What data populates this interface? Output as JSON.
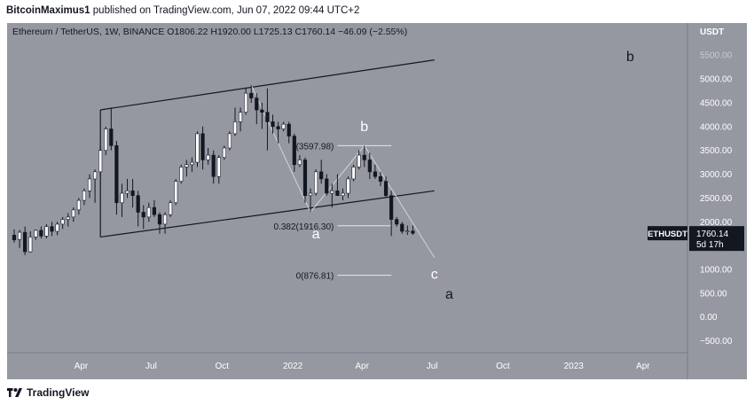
{
  "header": {
    "author": "BitcoinMaximus1",
    "published_text": "published on TradingView.com, Jun 07, 2022 09:44 UTC+2"
  },
  "colors": {
    "background": "#9598a1",
    "up_candle": "#ffffff",
    "down_candle": "#131722",
    "channel_line": "#131722",
    "wave_line": "#d1d4dc",
    "fib_line": "#e8e8e8",
    "price_tag": "#131722"
  },
  "chart_data": {
    "type": "candlestick",
    "symbol_line": {
      "name": "Ethereum / TetherUS, 1W, BINANCE",
      "open_label": "O",
      "open": "1806.22",
      "high_label": "H",
      "high": "1920.00",
      "low_label": "L",
      "low": "1725.13",
      "close_label": "C",
      "close": "1760.14",
      "change": "−46.09 (−2.55%)"
    },
    "y_axis": {
      "unit": "USDT",
      "range": [
        -750,
        6100
      ],
      "ticks": [
        "5500.00",
        "5000.00",
        "4500.00",
        "4000.00",
        "3500.00",
        "3000.00",
        "2500.00",
        "2000.00",
        "1500.00",
        "1000.00",
        "500.00",
        "0.00",
        "−500.00"
      ],
      "tick_values": [
        5500,
        5000,
        4500,
        4000,
        3500,
        3000,
        2500,
        2000,
        1500,
        1000,
        500,
        0,
        -500
      ]
    },
    "x_axis": {
      "start": "2021-01-04",
      "end": "2023-05-15",
      "ticks": [
        {
          "label": "Apr",
          "date": "2021-04-01"
        },
        {
          "label": "Jul",
          "date": "2021-07-01"
        },
        {
          "label": "Oct",
          "date": "2021-10-01"
        },
        {
          "label": "2022",
          "date": "2022-01-01"
        },
        {
          "label": "Apr",
          "date": "2022-04-01"
        },
        {
          "label": "Jul",
          "date": "2022-07-01"
        },
        {
          "label": "Oct",
          "date": "2022-10-01"
        },
        {
          "label": "2023",
          "date": "2023-01-01"
        },
        {
          "label": "Apr",
          "date": "2023-04-01"
        }
      ]
    },
    "last_price": {
      "symbol": "ETHUSDT",
      "price": "1760.14",
      "value": 1760.14,
      "countdown": "5d 17h"
    },
    "candles": [
      {
        "date": "2021-01-04",
        "o": 1720,
        "h": 1840,
        "l": 1560,
        "c": 1620
      },
      {
        "date": "2021-01-11",
        "o": 1630,
        "h": 1830,
        "l": 1450,
        "c": 1780
      },
      {
        "date": "2021-01-18",
        "o": 1780,
        "h": 1900,
        "l": 1300,
        "c": 1370
      },
      {
        "date": "2021-01-25",
        "o": 1370,
        "h": 1800,
        "l": 1350,
        "c": 1680
      },
      {
        "date": "2021-02-01",
        "o": 1680,
        "h": 1840,
        "l": 1620,
        "c": 1820
      },
      {
        "date": "2021-02-08",
        "o": 1820,
        "h": 1900,
        "l": 1650,
        "c": 1700
      },
      {
        "date": "2021-02-15",
        "o": 1700,
        "h": 1950,
        "l": 1650,
        "c": 1900
      },
      {
        "date": "2021-02-22",
        "o": 1900,
        "h": 2000,
        "l": 1700,
        "c": 1800
      },
      {
        "date": "2021-03-01",
        "o": 1800,
        "h": 2000,
        "l": 1720,
        "c": 1950
      },
      {
        "date": "2021-03-08",
        "o": 1950,
        "h": 2100,
        "l": 1850,
        "c": 2050
      },
      {
        "date": "2021-03-15",
        "o": 2050,
        "h": 2180,
        "l": 1900,
        "c": 2100
      },
      {
        "date": "2021-03-22",
        "o": 2100,
        "h": 2300,
        "l": 2000,
        "c": 2250
      },
      {
        "date": "2021-03-29",
        "o": 2250,
        "h": 2500,
        "l": 2150,
        "c": 2450
      },
      {
        "date": "2021-04-05",
        "o": 2450,
        "h": 2700,
        "l": 2350,
        "c": 2650
      },
      {
        "date": "2021-04-12",
        "o": 2650,
        "h": 3000,
        "l": 2500,
        "c": 2900
      },
      {
        "date": "2021-04-19",
        "o": 2900,
        "h": 3100,
        "l": 2400,
        "c": 3050
      },
      {
        "date": "2021-04-26",
        "o": 3050,
        "h": 3600,
        "l": 2950,
        "c": 3500
      },
      {
        "date": "2021-05-03",
        "o": 3500,
        "h": 4000,
        "l": 3400,
        "c": 3950
      },
      {
        "date": "2021-05-10",
        "o": 3950,
        "h": 4400,
        "l": 3500,
        "c": 3600
      },
      {
        "date": "2021-05-17",
        "o": 3600,
        "h": 3700,
        "l": 2150,
        "c": 2400
      },
      {
        "date": "2021-05-24",
        "o": 2400,
        "h": 2800,
        "l": 2100,
        "c": 2600
      },
      {
        "date": "2021-05-31",
        "o": 2600,
        "h": 2900,
        "l": 2500,
        "c": 2650
      },
      {
        "date": "2021-06-07",
        "o": 2650,
        "h": 2900,
        "l": 2300,
        "c": 2550
      },
      {
        "date": "2021-06-14",
        "o": 2550,
        "h": 2650,
        "l": 1900,
        "c": 2200
      },
      {
        "date": "2021-06-21",
        "o": 2200,
        "h": 2350,
        "l": 1850,
        "c": 2100
      },
      {
        "date": "2021-06-28",
        "o": 2100,
        "h": 2400,
        "l": 2000,
        "c": 2300
      },
      {
        "date": "2021-07-05",
        "o": 2300,
        "h": 2450,
        "l": 2100,
        "c": 2150
      },
      {
        "date": "2021-07-12",
        "o": 2150,
        "h": 2200,
        "l": 1750,
        "c": 1950
      },
      {
        "date": "2021-07-19",
        "o": 1950,
        "h": 2200,
        "l": 1750,
        "c": 2150
      },
      {
        "date": "2021-07-26",
        "o": 2150,
        "h": 2450,
        "l": 2100,
        "c": 2400
      },
      {
        "date": "2021-08-02",
        "o": 2400,
        "h": 2900,
        "l": 2350,
        "c": 2850
      },
      {
        "date": "2021-08-09",
        "o": 2850,
        "h": 3200,
        "l": 2800,
        "c": 3150
      },
      {
        "date": "2021-08-16",
        "o": 3150,
        "h": 3300,
        "l": 2950,
        "c": 3200
      },
      {
        "date": "2021-08-23",
        "o": 3200,
        "h": 3350,
        "l": 3050,
        "c": 3250
      },
      {
        "date": "2021-08-30",
        "o": 3250,
        "h": 3900,
        "l": 3150,
        "c": 3850
      },
      {
        "date": "2021-09-06",
        "o": 3850,
        "h": 4000,
        "l": 3100,
        "c": 3300
      },
      {
        "date": "2021-09-13",
        "o": 3300,
        "h": 3550,
        "l": 3200,
        "c": 3400
      },
      {
        "date": "2021-09-20",
        "o": 3400,
        "h": 3500,
        "l": 2800,
        "c": 2950
      },
      {
        "date": "2021-09-27",
        "o": 2950,
        "h": 3400,
        "l": 2800,
        "c": 3350
      },
      {
        "date": "2021-10-04",
        "o": 3350,
        "h": 3600,
        "l": 3300,
        "c": 3550
      },
      {
        "date": "2021-10-11",
        "o": 3550,
        "h": 3900,
        "l": 3500,
        "c": 3850
      },
      {
        "date": "2021-10-18",
        "o": 3850,
        "h": 4400,
        "l": 3800,
        "c": 4100
      },
      {
        "date": "2021-10-25",
        "o": 4100,
        "h": 4400,
        "l": 3900,
        "c": 4300
      },
      {
        "date": "2021-11-01",
        "o": 4300,
        "h": 4800,
        "l": 4250,
        "c": 4700
      },
      {
        "date": "2021-11-08",
        "o": 4700,
        "h": 4870,
        "l": 4500,
        "c": 4600
      },
      {
        "date": "2021-11-15",
        "o": 4600,
        "h": 4700,
        "l": 4050,
        "c": 4350
      },
      {
        "date": "2021-11-22",
        "o": 4350,
        "h": 4500,
        "l": 3950,
        "c": 4300
      },
      {
        "date": "2021-11-29",
        "o": 4300,
        "h": 4800,
        "l": 3500,
        "c": 4100
      },
      {
        "date": "2021-12-06",
        "o": 4100,
        "h": 4250,
        "l": 3850,
        "c": 4000
      },
      {
        "date": "2021-12-13",
        "o": 4000,
        "h": 4100,
        "l": 3650,
        "c": 3950
      },
      {
        "date": "2021-12-20",
        "o": 3950,
        "h": 4100,
        "l": 3900,
        "c": 4050
      },
      {
        "date": "2021-12-27",
        "o": 4050,
        "h": 4100,
        "l": 3650,
        "c": 3800
      },
      {
        "date": "2022-01-03",
        "o": 3800,
        "h": 3850,
        "l": 3050,
        "c": 3200
      },
      {
        "date": "2022-01-10",
        "o": 3200,
        "h": 3400,
        "l": 3150,
        "c": 3300
      },
      {
        "date": "2022-01-17",
        "o": 3300,
        "h": 3350,
        "l": 2400,
        "c": 2550
      },
      {
        "date": "2022-01-24",
        "o": 2550,
        "h": 2700,
        "l": 2200,
        "c": 2600
      },
      {
        "date": "2022-01-31",
        "o": 2600,
        "h": 3100,
        "l": 2550,
        "c": 3050
      },
      {
        "date": "2022-02-07",
        "o": 3050,
        "h": 3300,
        "l": 2800,
        "c": 2900
      },
      {
        "date": "2022-02-14",
        "o": 2900,
        "h": 3000,
        "l": 2550,
        "c": 2600
      },
      {
        "date": "2022-02-21",
        "o": 2600,
        "h": 2800,
        "l": 2300,
        "c": 2650
      },
      {
        "date": "2022-02-28",
        "o": 2650,
        "h": 3000,
        "l": 2550,
        "c": 2550
      },
      {
        "date": "2022-03-07",
        "o": 2550,
        "h": 2700,
        "l": 2450,
        "c": 2600
      },
      {
        "date": "2022-03-14",
        "o": 2600,
        "h": 2950,
        "l": 2500,
        "c": 2900
      },
      {
        "date": "2022-03-21",
        "o": 2900,
        "h": 3200,
        "l": 2850,
        "c": 3150
      },
      {
        "date": "2022-03-28",
        "o": 3150,
        "h": 3500,
        "l": 3100,
        "c": 3400
      },
      {
        "date": "2022-04-04",
        "o": 3400,
        "h": 3600,
        "l": 3150,
        "c": 3300
      },
      {
        "date": "2022-04-11",
        "o": 3300,
        "h": 3450,
        "l": 2900,
        "c": 3050
      },
      {
        "date": "2022-04-18",
        "o": 3050,
        "h": 3200,
        "l": 2900,
        "c": 2950
      },
      {
        "date": "2022-04-25",
        "o": 2950,
        "h": 3050,
        "l": 2750,
        "c": 2850
      },
      {
        "date": "2022-05-02",
        "o": 2850,
        "h": 2950,
        "l": 2500,
        "c": 2550
      },
      {
        "date": "2022-05-09",
        "o": 2550,
        "h": 2650,
        "l": 1700,
        "c": 2050
      },
      {
        "date": "2022-05-16",
        "o": 2050,
        "h": 2100,
        "l": 1900,
        "c": 1950
      },
      {
        "date": "2022-05-23",
        "o": 1950,
        "h": 2000,
        "l": 1750,
        "c": 1800
      },
      {
        "date": "2022-05-30",
        "o": 1800,
        "h": 1920,
        "l": 1725,
        "c": 1806
      },
      {
        "date": "2022-06-06",
        "o": 1806.22,
        "h": 1920,
        "l": 1725.13,
        "c": 1760.14
      }
    ],
    "channel_lines": [
      {
        "x1": "2021-04-26",
        "y1": 4350,
        "x2": "2022-07-04",
        "y2": 5400
      },
      {
        "x1": "2021-04-26",
        "y1": 1680,
        "x2": "2022-07-04",
        "y2": 2650
      }
    ],
    "channel_verticals": [
      {
        "x": "2021-04-26",
        "y1": 1680,
        "y2": 4350
      }
    ],
    "wave_path": [
      {
        "date": "2021-11-08",
        "value": 4870
      },
      {
        "date": "2022-01-24",
        "value": 2200
      },
      {
        "date": "2022-04-04",
        "value": 3597.98
      },
      {
        "date": "2022-07-04",
        "value": 1250
      }
    ],
    "fib_levels": [
      {
        "label": "(3597.98)",
        "value": 3597.98,
        "x_start": "2022-02-28",
        "x_end": "2022-05-09"
      },
      {
        "label": "0.382(1916.30)",
        "value": 1916.3,
        "x_start": "2022-02-28",
        "x_end": "2022-05-09"
      },
      {
        "label": "0(876.81)",
        "value": 876.81,
        "x_start": "2022-02-28",
        "x_end": "2022-05-09"
      }
    ],
    "wave_labels": [
      {
        "text": "b",
        "date": "2022-04-04",
        "value": 3900,
        "color": "white",
        "size": 16
      },
      {
        "text": "a",
        "date": "2022-01-31",
        "value": 1650,
        "color": "white",
        "size": 16
      },
      {
        "text": "c",
        "date": "2022-07-04",
        "value": 800,
        "color": "white",
        "size": 16
      }
    ],
    "outer_labels": [
      {
        "text": "b",
        "left": 706,
        "top": 55
      },
      {
        "text": "a",
        "left": 502,
        "top": 323
      }
    ]
  },
  "footer": {
    "brand": "TradingView"
  }
}
